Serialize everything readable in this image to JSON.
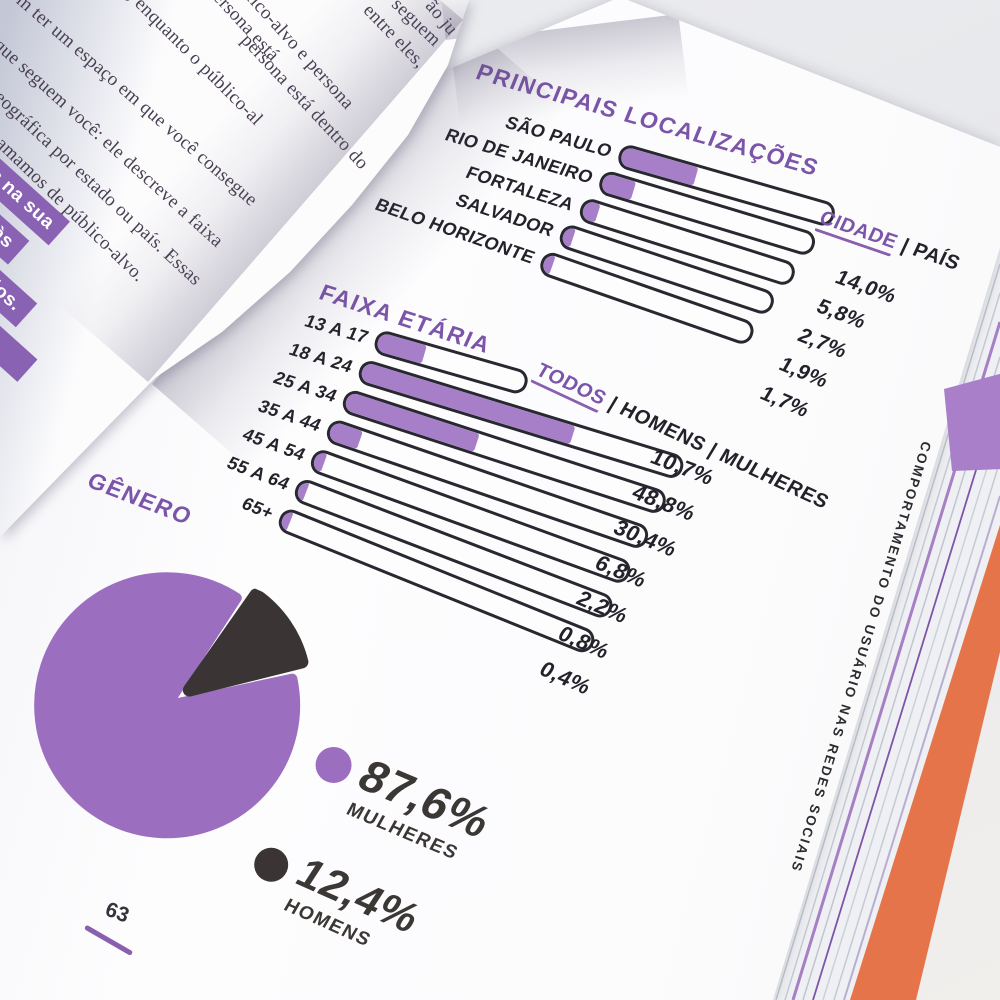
{
  "book": {
    "left_page": {
      "lines": [
        "e persona está",
        "público-alvo e persona",
        "persona está dentro do",
        "a, enquanto o público-al",
        "m ter um espaço em que você consegue",
        "s que seguem você: ele descreve a faixa",
        "ão geográfica por estado ou país. Essas",
        "ue chamamos de público-alvo.",
        "entre eles,",
        "seguem",
        "ão ju"
      ],
      "highlights": [
        "es na sua",
        "á às",
        "órios."
      ]
    },
    "right_page": {
      "page_number": "63",
      "side_text": "COMPORTAMENTO DO USUÁRIO NAS REDES SOCIAIS",
      "locations": {
        "title": "PRINCIPAIS LOCALIZAÇÕES",
        "filter_primary": "CIDADE",
        "filter_rest": " | PAÍS",
        "items": [
          {
            "label": "SÃO PAULO",
            "pct": "14,0%",
            "value": 14.0
          },
          {
            "label": "RIO DE JANEIRO",
            "pct": "5,8%",
            "value": 5.8
          },
          {
            "label": "FORTALEZA",
            "pct": "2,7%",
            "value": 2.7
          },
          {
            "label": "SALVADOR",
            "pct": "1,9%",
            "value": 1.9
          },
          {
            "label": "BELO HORIZONTE",
            "pct": "1,7%",
            "value": 1.7
          }
        ]
      },
      "age": {
        "title": "FAIXA ETÁRIA",
        "filter_primary": "TODOS",
        "filter_rest": " | HOMENS | MULHERES",
        "items": [
          {
            "label": "13 A 17",
            "pct": "10,7%",
            "value": 10.7
          },
          {
            "label": "18 A 24",
            "pct": "48,8%",
            "value": 48.8
          },
          {
            "label": "25 A 34",
            "pct": "30,4%",
            "value": 30.4
          },
          {
            "label": "35 A 44",
            "pct": "6,8%",
            "value": 6.8
          },
          {
            "label": "45 A 54",
            "pct": "2,2%",
            "value": 2.2
          },
          {
            "label": "55 A 64",
            "pct": "0,8%",
            "value": 0.8
          },
          {
            "label": "65+",
            "pct": "0,4%",
            "value": 0.4
          }
        ]
      },
      "gender": {
        "title": "GÊNERO",
        "slices": [
          {
            "label": "MULHERES",
            "pct": "87,6%",
            "value": 87.6,
            "color": "#9c6ec0"
          },
          {
            "label": "HOMENS",
            "pct": "12,4%",
            "value": 12.4,
            "color": "#3a3534"
          }
        ]
      }
    }
  },
  "colors": {
    "accent_purple": "#8a5fae",
    "bar_fill_purple": "#a77fc8",
    "pie_purple": "#9c6ec0",
    "pie_dark": "#3a3534",
    "ink": "#23222a",
    "cover_orange": "#e5744a"
  },
  "chart_data": [
    {
      "type": "bar",
      "title": "PRINCIPAIS LOCALIZAÇÕES",
      "note": "CIDADE | PAÍS",
      "categories": [
        "SÃO PAULO",
        "RIO DE JANEIRO",
        "FORTALEZA",
        "SALVADOR",
        "BELO HORIZONTE"
      ],
      "values": [
        14.0,
        5.8,
        2.7,
        1.9,
        1.7
      ],
      "unit": "%"
    },
    {
      "type": "bar",
      "title": "FAIXA ETÁRIA",
      "note": "TODOS | HOMENS | MULHERES",
      "categories": [
        "13 A 17",
        "18 A 24",
        "25 A 34",
        "35 A 44",
        "45 A 54",
        "55 A 64",
        "65+"
      ],
      "values": [
        10.7,
        48.8,
        30.4,
        6.8,
        2.2,
        0.8,
        0.4
      ],
      "unit": "%"
    },
    {
      "type": "pie",
      "title": "GÊNERO",
      "categories": [
        "MULHERES",
        "HOMENS"
      ],
      "values": [
        87.6,
        12.4
      ],
      "colors": [
        "#9c6ec0",
        "#3a3534"
      ],
      "unit": "%"
    }
  ]
}
